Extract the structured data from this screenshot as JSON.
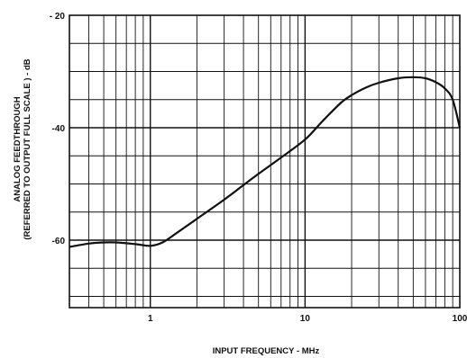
{
  "chart_data": {
    "type": "line",
    "x_scale": "log",
    "xlim": [
      0.3,
      100
    ],
    "ylim": [
      -72,
      -20
    ],
    "xlabel": "INPUT FREQUENCY - MHz",
    "ylabel_line1": "ANALOG FEEDTHROUGH",
    "ylabel_line2": "(REFERRED TO OUTPUT FULL SCALE ) - dB",
    "x_ticks": [
      {
        "value": 1,
        "label": "1"
      },
      {
        "value": 10,
        "label": "10"
      },
      {
        "value": 100,
        "label": "100"
      }
    ],
    "y_ticks": [
      {
        "value": -20,
        "label": "- 20"
      },
      {
        "value": -40,
        "label": "-40"
      },
      {
        "value": -60,
        "label": "-60"
      }
    ],
    "grid": true,
    "series": [
      {
        "x": [
          0.3,
          0.4,
          0.5,
          0.6,
          0.8,
          1.0,
          1.2,
          1.5,
          2,
          3,
          4,
          5,
          7,
          10,
          13,
          17,
          20,
          25,
          30,
          40,
          50,
          60,
          70,
          80,
          90,
          100
        ],
        "y": [
          -61.2,
          -60.6,
          -60.4,
          -60.4,
          -60.7,
          -61.0,
          -60.4,
          -58.6,
          -56.2,
          -52.8,
          -50.2,
          -48.2,
          -45.3,
          -42.1,
          -38.8,
          -35.6,
          -34.2,
          -32.8,
          -32.0,
          -31.2,
          -31.0,
          -31.2,
          -31.9,
          -33.0,
          -35.0,
          -40.0
        ]
      }
    ]
  }
}
